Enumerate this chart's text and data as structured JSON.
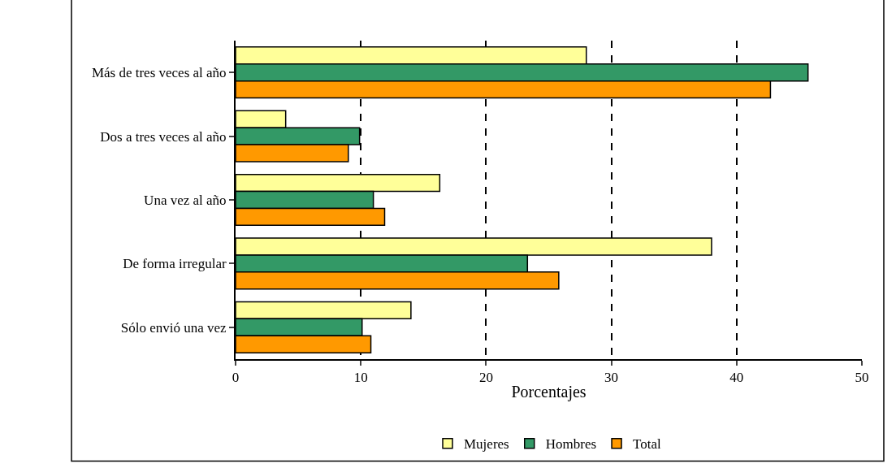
{
  "chart_data": {
    "type": "bar",
    "orientation": "horizontal",
    "xlabel": "Porcentajes",
    "categories": [
      "Más de tres veces al año",
      "Dos a tres veces al año",
      "Una vez al año",
      "De forma irregular",
      "Sólo envió una vez"
    ],
    "series": [
      {
        "name": "Mujeres",
        "color": "#ffff99",
        "values": [
          28.0,
          4.0,
          16.3,
          38.0,
          14.0
        ]
      },
      {
        "name": "Hombres",
        "color": "#339966",
        "values": [
          45.7,
          9.9,
          11.0,
          23.3,
          10.1
        ]
      },
      {
        "name": "Total",
        "color": "#ff9900",
        "values": [
          42.7,
          9.0,
          11.9,
          25.8,
          10.8
        ]
      }
    ],
    "xlim": [
      0,
      50
    ],
    "xticks": [
      0,
      10,
      20,
      30,
      40,
      50
    ],
    "grid": "x",
    "legend": "bottom"
  }
}
